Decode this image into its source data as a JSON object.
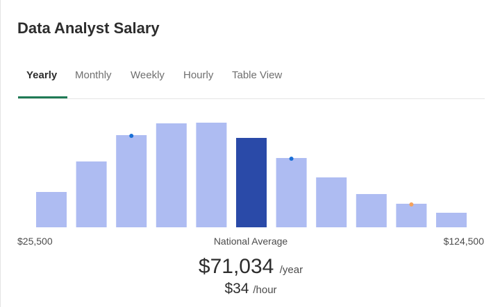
{
  "header": {
    "title": "Data Analyst Salary"
  },
  "tabs": [
    "Yearly",
    "Monthly",
    "Weekly",
    "Hourly",
    "Table View"
  ],
  "chart_data": {
    "type": "bar",
    "values": [
      51,
      95,
      133,
      150,
      151,
      129,
      100,
      72,
      48,
      34,
      21
    ],
    "color": "#aebcf2",
    "highlight_index": 5,
    "highlight_color": "#2a4aa8",
    "ylim": [
      0,
      155
    ],
    "markers": [
      {
        "bar": 2,
        "color": "#1a6fd6"
      },
      {
        "bar": 6,
        "color": "#1a6fd6"
      },
      {
        "bar": 9,
        "color": "#f5a25d"
      }
    ],
    "x_min_label": "$25,500",
    "x_max_label": "$124,500",
    "center_label": "National Average"
  },
  "summary": {
    "yearly": "$71,034",
    "yearly_unit": "/year",
    "hourly": "$34",
    "hourly_unit": "/hour"
  }
}
